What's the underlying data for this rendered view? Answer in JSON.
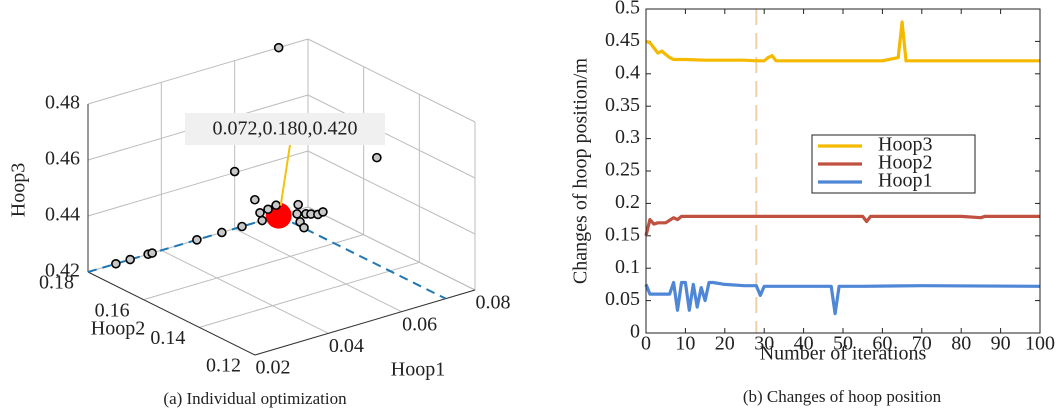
{
  "chart_data": [
    {
      "type": "scatter3d",
      "caption": "(a) Individual optimization",
      "xlabel": "Hoop1",
      "ylabel": "Hoop2",
      "zlabel": "Hoop3",
      "xlim": [
        0.02,
        0.08
      ],
      "ylim": [
        0.12,
        0.18
      ],
      "zlim": [
        0.42,
        0.48
      ],
      "xticks": [
        0.02,
        0.04,
        0.06,
        0.08
      ],
      "yticks": [
        0.12,
        0.14,
        0.16,
        0.18
      ],
      "zticks": [
        0.42,
        0.44,
        0.46,
        0.48
      ],
      "grid": true,
      "color": "#bdbdbd",
      "x": [
        0.072,
        0.076,
        0.06,
        0.0655,
        0.0276,
        0.0315,
        0.0364,
        0.0375,
        0.0497,
        0.0565,
        0.062,
        0.0669,
        0.0691,
        0.0713,
        0.0675,
        0.072,
        0.072,
        0.072,
        0.072,
        0.072,
        0.072,
        0.072,
        0.072
      ],
      "y": [
        0.18,
        0.15,
        0.18,
        0.18,
        0.18,
        0.18,
        0.18,
        0.18,
        0.18,
        0.18,
        0.18,
        0.18,
        0.18,
        0.18,
        0.18,
        0.1734,
        0.1702,
        0.1684,
        0.1659,
        0.1641,
        0.1723,
        0.1709,
        0.173
      ],
      "z": [
        0.48,
        0.454,
        0.4404,
        0.4282,
        0.42,
        0.42,
        0.42,
        0.42,
        0.42,
        0.42,
        0.42,
        0.423,
        0.4234,
        0.424,
        0.42,
        0.4239,
        0.4255,
        0.4263,
        0.4274,
        0.4292,
        0.4216,
        0.4202,
        0.4274
      ],
      "highlight": {
        "x": 0.072,
        "y": 0.18,
        "z": 0.42,
        "color": "#ff0000",
        "label": "0.072,0.180,0.420",
        "label_color": "#f4c20d",
        "guide_color": "#1f77b4"
      }
    },
    {
      "type": "line",
      "caption": "(b) Changes of hoop position",
      "xlabel": "Number of iterations",
      "ylabel": "Changes of hoop position/m",
      "xlim": [
        0,
        100
      ],
      "ylim": [
        0,
        0.5
      ],
      "xticks": [
        0,
        10,
        20,
        30,
        40,
        50,
        60,
        70,
        80,
        90,
        100
      ],
      "yticks": [
        0,
        0.05,
        0.1,
        0.15,
        0.2,
        0.25,
        0.3,
        0.35,
        0.4,
        0.45,
        0.5
      ],
      "reference_x": 28,
      "reference_color": "#f0cfa8",
      "legend": "center right",
      "series": [
        {
          "name": "Hoop3",
          "color": "#f5b900",
          "x": [
            0,
            1,
            2,
            3,
            4,
            5,
            6,
            7,
            8,
            10,
            15,
            20,
            25,
            28,
            30,
            31,
            32,
            33,
            35,
            40,
            50,
            60,
            64,
            65,
            66,
            70,
            80,
            90,
            100
          ],
          "values": [
            0.45,
            0.448,
            0.44,
            0.432,
            0.435,
            0.43,
            0.425,
            0.422,
            0.422,
            0.422,
            0.421,
            0.421,
            0.421,
            0.42,
            0.42,
            0.425,
            0.428,
            0.42,
            0.42,
            0.42,
            0.42,
            0.42,
            0.425,
            0.48,
            0.42,
            0.42,
            0.42,
            0.42,
            0.42
          ]
        },
        {
          "name": "Hoop2",
          "color": "#c0503f",
          "x": [
            0,
            1,
            2,
            3,
            5,
            7,
            8,
            9,
            10,
            15,
            20,
            30,
            40,
            55,
            56,
            57,
            60,
            80,
            85,
            86,
            90,
            100
          ],
          "values": [
            0.15,
            0.175,
            0.168,
            0.17,
            0.17,
            0.178,
            0.175,
            0.18,
            0.18,
            0.18,
            0.18,
            0.18,
            0.18,
            0.18,
            0.172,
            0.18,
            0.18,
            0.18,
            0.178,
            0.18,
            0.18,
            0.18
          ]
        },
        {
          "name": "Hoop1",
          "color": "#4f87d6",
          "x": [
            0,
            1,
            2,
            5,
            6,
            7,
            8,
            9,
            10,
            11,
            12,
            13,
            14,
            15,
            16,
            17,
            20,
            25,
            28,
            29,
            30,
            35,
            40,
            47,
            48,
            49,
            55,
            70,
            100
          ],
          "values": [
            0.075,
            0.06,
            0.06,
            0.06,
            0.06,
            0.078,
            0.035,
            0.078,
            0.078,
            0.035,
            0.075,
            0.04,
            0.07,
            0.05,
            0.078,
            0.078,
            0.075,
            0.073,
            0.073,
            0.058,
            0.072,
            0.072,
            0.072,
            0.072,
            0.03,
            0.072,
            0.072,
            0.073,
            0.072
          ]
        }
      ]
    }
  ]
}
